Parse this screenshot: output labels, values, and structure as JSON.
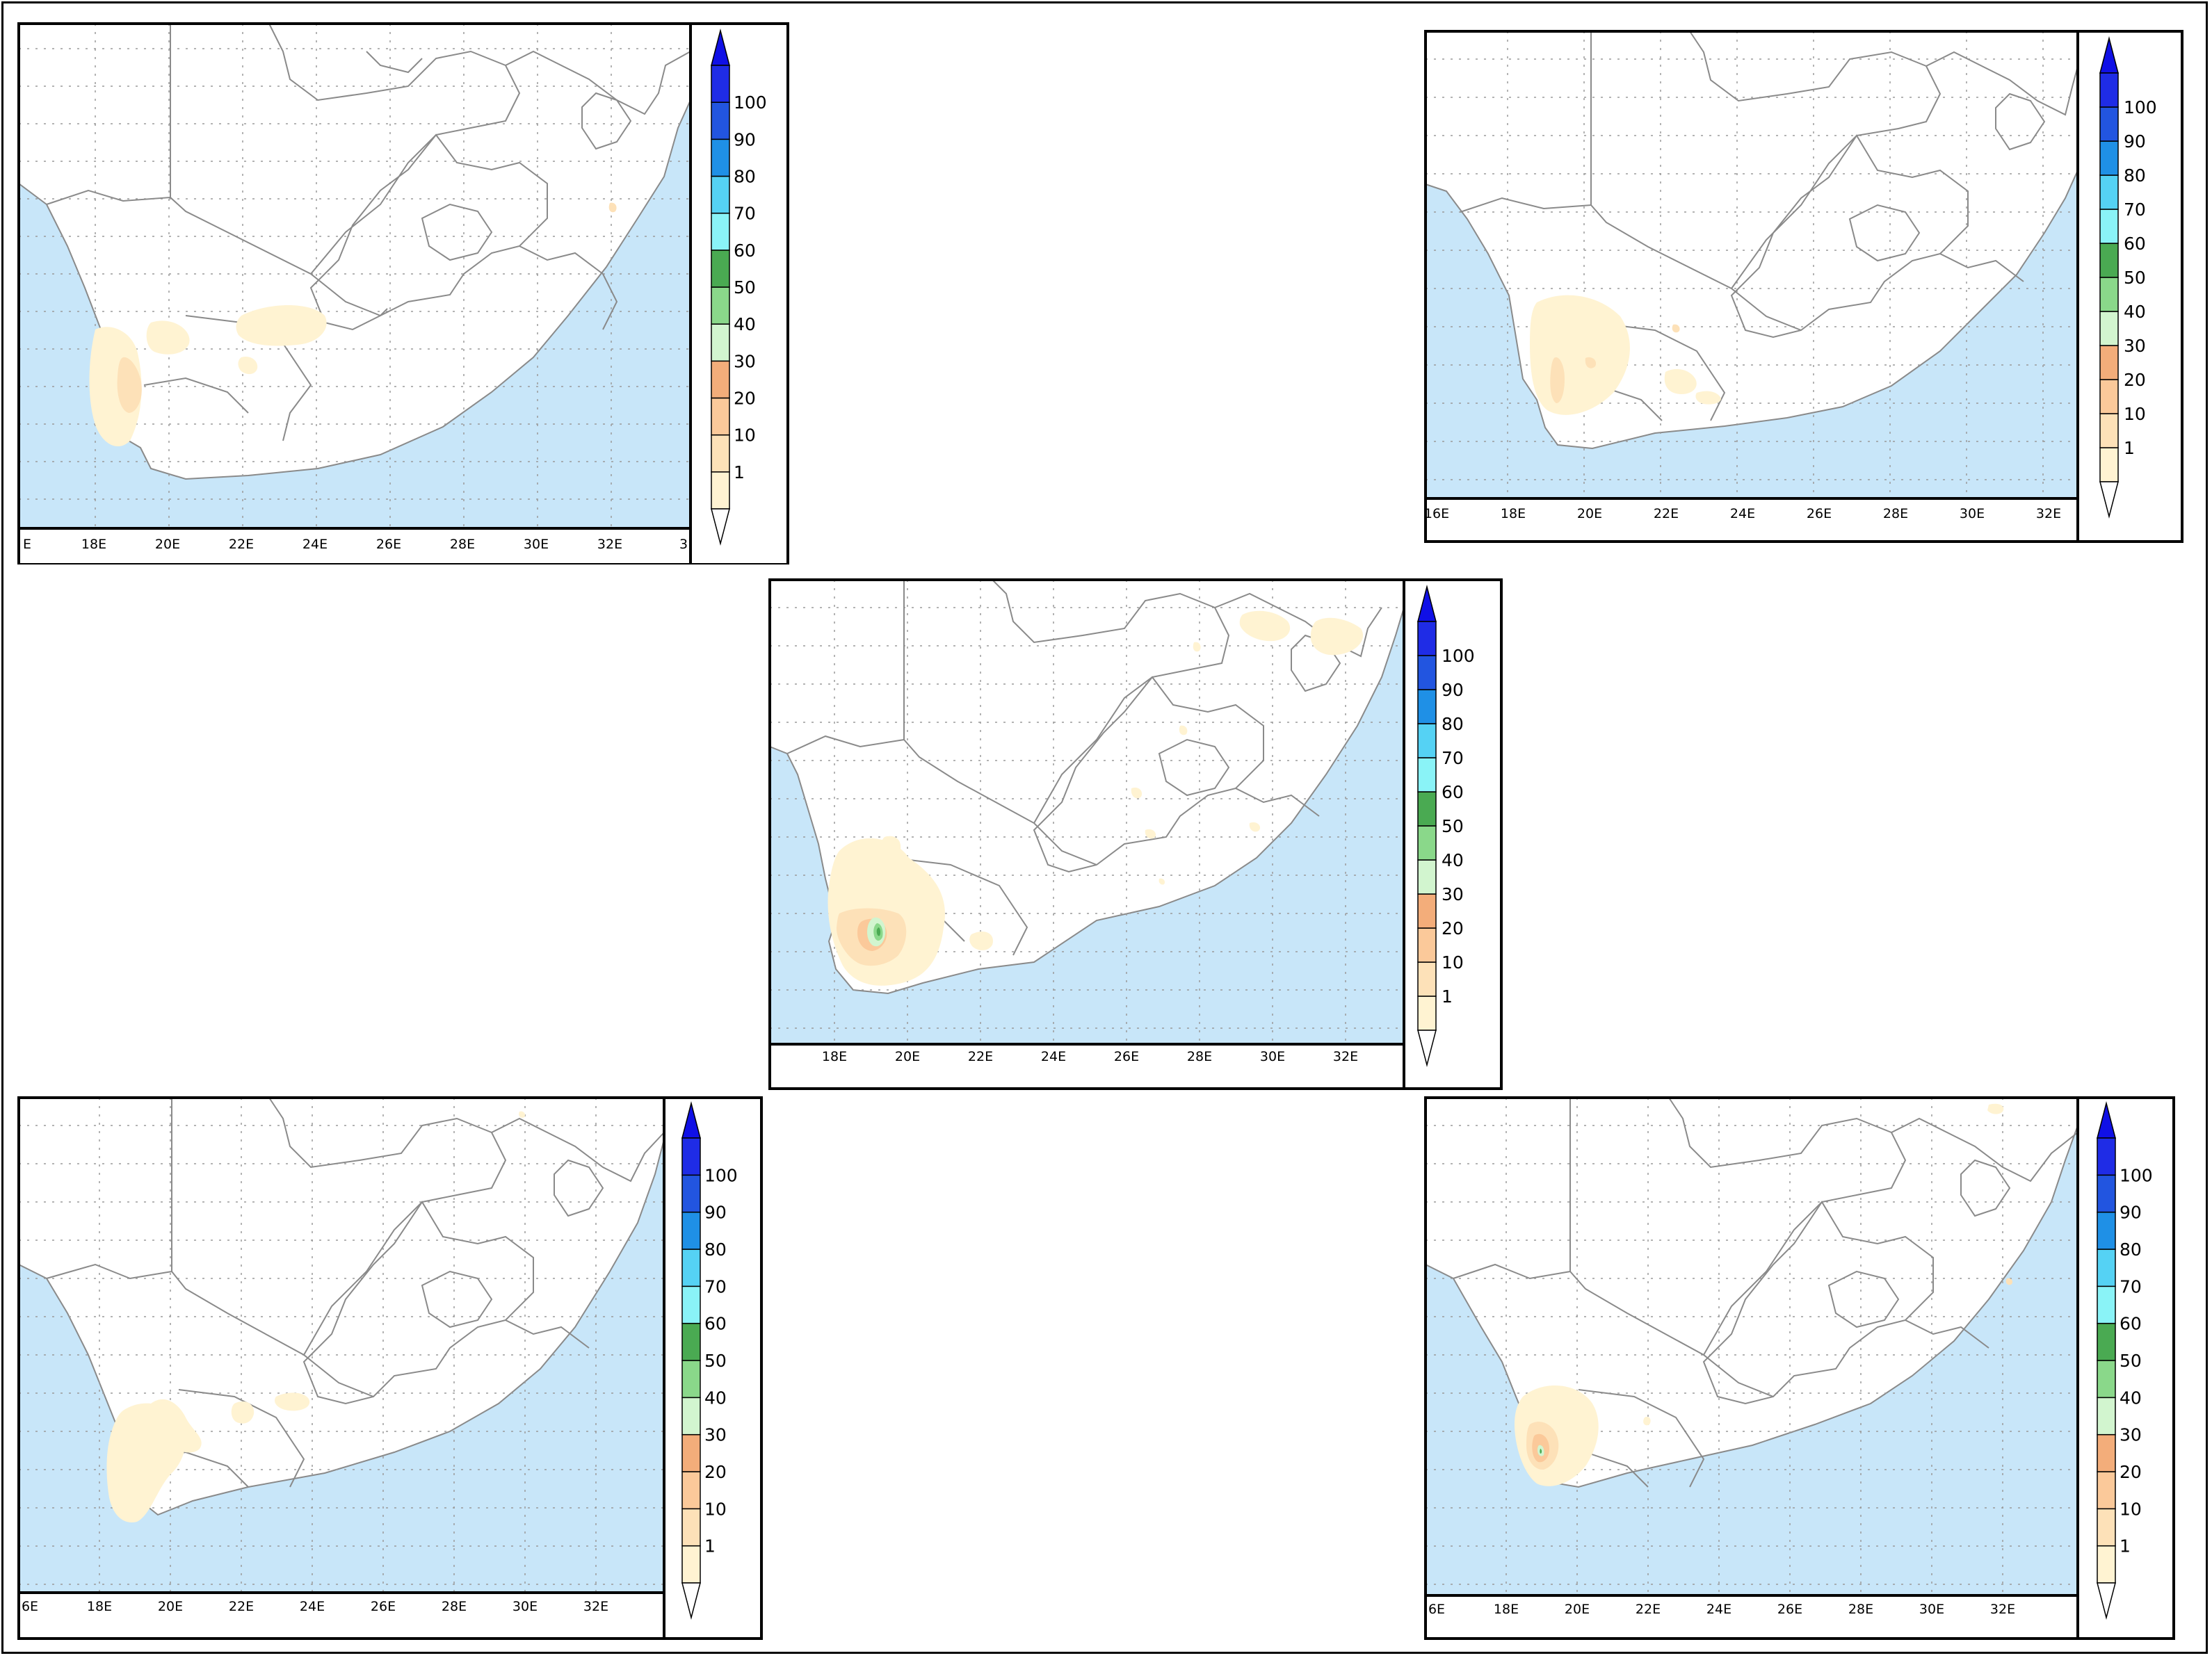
{
  "figure": {
    "panel_count": 5,
    "panels": [
      {
        "id": "top-left",
        "x_ticks": [
          "E",
          "18E",
          "20E",
          "22E",
          "24E",
          "26E",
          "28E",
          "30E",
          "32E",
          "3"
        ]
      },
      {
        "id": "top-right",
        "x_ticks": [
          "16E",
          "18E",
          "20E",
          "22E",
          "24E",
          "26E",
          "28E",
          "30E",
          "32E"
        ]
      },
      {
        "id": "center",
        "x_ticks": [
          "18E",
          "20E",
          "22E",
          "24E",
          "26E",
          "28E",
          "30E",
          "32E"
        ]
      },
      {
        "id": "bottom-left",
        "x_ticks": [
          "6E",
          "18E",
          "20E",
          "22E",
          "24E",
          "26E",
          "28E",
          "30E",
          "32E"
        ]
      },
      {
        "id": "bottom-right",
        "x_ticks": [
          "6E",
          "18E",
          "20E",
          "22E",
          "24E",
          "26E",
          "28E",
          "30E",
          "32E"
        ]
      }
    ]
  },
  "colorbar": {
    "levels": [
      "1",
      "10",
      "20",
      "30",
      "40",
      "50",
      "60",
      "70",
      "80",
      "90",
      "100"
    ],
    "colors": [
      "#fff3d2",
      "#fde1b8",
      "#fbc99a",
      "#f3ad7a",
      "#d2f5cf",
      "#8ad88a",
      "#4aaa52",
      "#8af3f7",
      "#55d2f4",
      "#1f90e6",
      "#2255e0",
      "#1f2ce6"
    ],
    "below_color": "#ffffff",
    "above_color": "#1010e6"
  },
  "map_colors": {
    "ocean": "#c8e6f9",
    "land": "#ffffff",
    "border": "#8a8a8a",
    "grid": "#9a9a9a"
  }
}
